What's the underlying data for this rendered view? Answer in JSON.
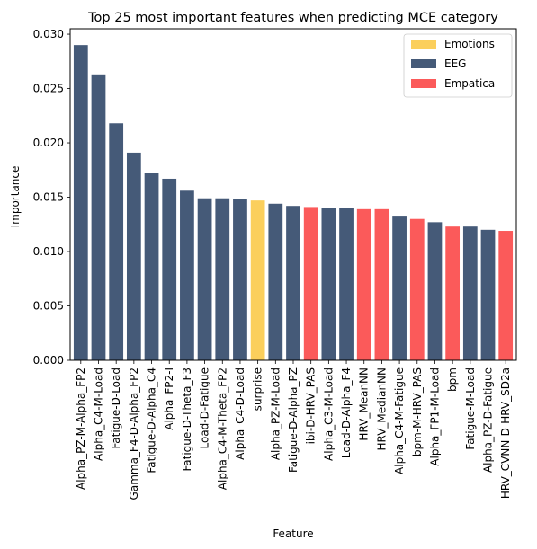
{
  "colors": {
    "Emotions": "#fbcf5c",
    "EEG": "#455a78",
    "Empatica": "#fb5a5a"
  },
  "chart_data": {
    "type": "bar",
    "title": "Top 25 most important features when predicting MCE category",
    "xlabel": "Feature",
    "ylabel": "Importance",
    "ylim": [
      0,
      0.0305
    ],
    "yticks": [
      0.0,
      0.005,
      0.01,
      0.015,
      0.02,
      0.025,
      0.03
    ],
    "ytick_labels": [
      "0.000",
      "0.005",
      "0.010",
      "0.015",
      "0.020",
      "0.025",
      "0.030"
    ],
    "grid": false,
    "legend_position": "top-right",
    "legend": [
      {
        "name": "Emotions"
      },
      {
        "name": "EEG"
      },
      {
        "name": "Empatica"
      }
    ],
    "categories": [
      "Alpha_PZ-M-Alpha_FP2",
      "Alpha_C4-M-Load",
      "Fatigue-D-Load",
      "Gamma_F4-D-Alpha_FP2",
      "Fatigue-D-Alpha_C4",
      "Alpha_FP2-I",
      "Fatigue-D-Theta_F3",
      "Load-D-Fatigue",
      "Alpha_C4-M-Theta_FP2",
      "Alpha_C4-D-Load",
      "surprise",
      "Alpha_PZ-M-Load",
      "Fatigue-D-Alpha_PZ",
      "ibi-D-HRV_PAS",
      "Alpha_C3-M-Load",
      "Load-D-Alpha_F4",
      "HRV_MeanNN",
      "HRV_MedianNN",
      "Alpha_C4-M-Fatigue",
      "bpm-M-HRV_PAS",
      "Alpha_FP1-M-Load",
      "bpm",
      "Fatigue-M-Load",
      "Alpha_PZ-D-Fatigue",
      "HRV_CVNN-D-HRV_SD2a"
    ],
    "values": [
      0.029,
      0.0263,
      0.0218,
      0.0191,
      0.0172,
      0.0167,
      0.0156,
      0.0149,
      0.0149,
      0.0148,
      0.0147,
      0.0144,
      0.0142,
      0.0141,
      0.014,
      0.014,
      0.0139,
      0.0139,
      0.0133,
      0.013,
      0.0127,
      0.0123,
      0.0123,
      0.012,
      0.0119
    ],
    "groups": [
      "EEG",
      "EEG",
      "EEG",
      "EEG",
      "EEG",
      "EEG",
      "EEG",
      "EEG",
      "EEG",
      "EEG",
      "Emotions",
      "EEG",
      "EEG",
      "Empatica",
      "EEG",
      "EEG",
      "Empatica",
      "Empatica",
      "EEG",
      "Empatica",
      "EEG",
      "Empatica",
      "EEG",
      "EEG",
      "Empatica"
    ]
  }
}
